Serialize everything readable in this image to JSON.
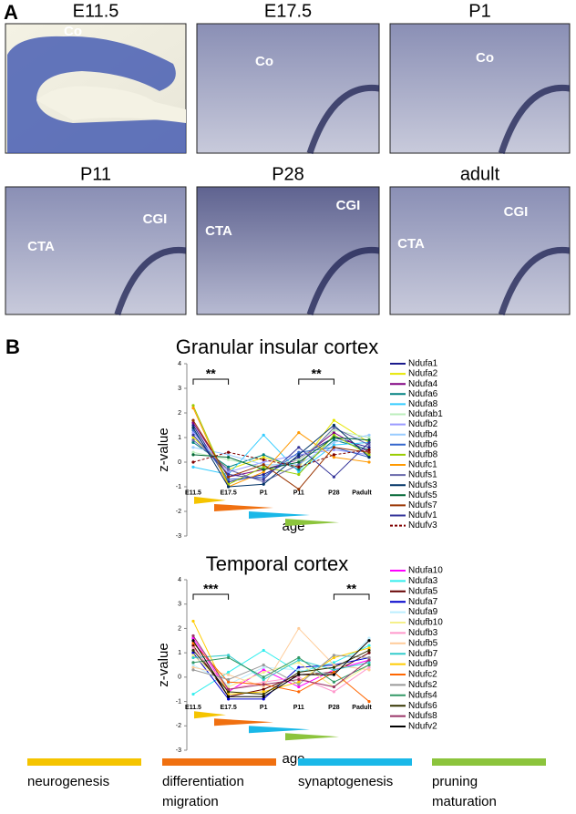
{
  "panel_a": {
    "label": "A",
    "images": [
      {
        "title": "E11.5",
        "labels": [
          "Co"
        ]
      },
      {
        "title": "E17.5",
        "labels": [
          "Co"
        ]
      },
      {
        "title": "P1",
        "labels": [
          "Co"
        ]
      },
      {
        "title": "P11",
        "labels": [
          "CGI",
          "CTA"
        ]
      },
      {
        "title": "P28",
        "labels": [
          "CGI",
          "CTA"
        ]
      },
      {
        "title": "adult",
        "labels": [
          "CGI",
          "CTA"
        ]
      }
    ]
  },
  "panel_b_label": "B",
  "chart_data": [
    {
      "type": "line",
      "title": "Granular insular cortex",
      "y_label": "z-value",
      "x_label": "age",
      "categories": [
        "E11.5",
        "E17.5",
        "P1",
        "P11",
        "P28",
        "Padult"
      ],
      "ylim": [
        -3,
        4
      ],
      "yticks": [
        -3,
        -2,
        -1,
        0,
        1,
        2,
        3,
        4
      ],
      "annotations": [
        {
          "text": "**"
        },
        {
          "text": "**"
        }
      ],
      "series": [
        {
          "name": "Ndufa1",
          "color": "#1a1a8c",
          "values": [
            1.5,
            -0.8,
            -0.5,
            0.2,
            1.0,
            0.6
          ]
        },
        {
          "name": "Ndufa2",
          "color": "#e6e600",
          "values": [
            1.0,
            -0.3,
            0.2,
            -0.2,
            1.7,
            0.8
          ]
        },
        {
          "name": "Ndufa4",
          "color": "#800080",
          "values": [
            1.6,
            -0.6,
            -0.3,
            0.1,
            1.2,
            0.4
          ]
        },
        {
          "name": "Ndufa6",
          "color": "#008080",
          "values": [
            0.8,
            -0.2,
            0.3,
            -0.3,
            0.9,
            0.5
          ]
        },
        {
          "name": "Ndufa8",
          "color": "#33ccff",
          "values": [
            -0.2,
            -0.5,
            1.1,
            -0.4,
            0.7,
            0.8
          ]
        },
        {
          "name": "Ndufab1",
          "color": "#bbeebb",
          "values": [
            0.4,
            0.1,
            -0.2,
            0.1,
            1.3,
            1.0
          ]
        },
        {
          "name": "Ndufb2",
          "color": "#9999ff",
          "values": [
            1.2,
            -0.4,
            0.0,
            0.3,
            0.5,
            0.3
          ]
        },
        {
          "name": "Ndufb4",
          "color": "#99ccff",
          "values": [
            0.6,
            0.3,
            -0.1,
            -0.1,
            0.8,
            1.1
          ]
        },
        {
          "name": "Ndufb6",
          "color": "#3366cc",
          "values": [
            1.3,
            -0.7,
            -0.6,
            0.4,
            0.6,
            0.2
          ]
        },
        {
          "name": "Ndufb8",
          "color": "#99cc00",
          "values": [
            2.3,
            -0.9,
            -0.2,
            -0.5,
            1.1,
            0.3
          ]
        },
        {
          "name": "Ndufc1",
          "color": "#ff9900",
          "values": [
            2.2,
            -1.0,
            -0.4,
            1.2,
            0.2,
            0.0
          ]
        },
        {
          "name": "Ndufs1",
          "color": "#6666aa",
          "values": [
            0.9,
            -0.3,
            -0.8,
            -0.1,
            1.4,
            0.7
          ]
        },
        {
          "name": "Ndufs3",
          "color": "#003366",
          "values": [
            1.4,
            -1.0,
            -0.9,
            0.3,
            1.5,
            0.2
          ]
        },
        {
          "name": "Ndufs5",
          "color": "#006633",
          "values": [
            0.3,
            0.2,
            -0.3,
            0.0,
            1.0,
            0.9
          ]
        },
        {
          "name": "Ndufs7",
          "color": "#993300",
          "values": [
            1.7,
            -0.6,
            -0.1,
            -1.1,
            0.6,
            0.4
          ]
        },
        {
          "name": "Ndufv1",
          "color": "#333399",
          "values": [
            1.1,
            -0.5,
            -0.7,
            0.6,
            -0.6,
            0.8
          ]
        },
        {
          "name": "Ndufv3",
          "color": "#800000",
          "dashed": true,
          "values": [
            0.0,
            0.4,
            0.1,
            -0.2,
            0.3,
            0.5
          ]
        }
      ]
    },
    {
      "type": "line",
      "title": "Temporal cortex",
      "y_label": "z-value",
      "x_label": "age",
      "categories": [
        "E11.5",
        "E17.5",
        "P1",
        "P11",
        "P28",
        "Padult"
      ],
      "ylim": [
        -3,
        4
      ],
      "yticks": [
        -3,
        -2,
        -1,
        0,
        1,
        2,
        3,
        4
      ],
      "annotations": [
        {
          "text": "***"
        },
        {
          "text": "**"
        }
      ],
      "series": [
        {
          "name": "Ndufa10",
          "color": "#ff00ff",
          "values": [
            1.6,
            -0.6,
            0.3,
            -0.4,
            0.3,
            0.7
          ]
        },
        {
          "name": "Ndufa3",
          "color": "#33eeee",
          "values": [
            -0.7,
            0.2,
            1.1,
            0.2,
            0.6,
            1.3
          ]
        },
        {
          "name": "Ndufa5",
          "color": "#660000",
          "values": [
            1.3,
            -0.8,
            -0.5,
            0.1,
            0.2,
            1.0
          ]
        },
        {
          "name": "Ndufa7",
          "color": "#0000cc",
          "values": [
            1.0,
            -0.9,
            -0.9,
            0.4,
            0.5,
            0.8
          ]
        },
        {
          "name": "Ndufa9",
          "color": "#bbeeff",
          "values": [
            0.5,
            -0.3,
            0.4,
            0.3,
            0.1,
            1.6
          ]
        },
        {
          "name": "Ndufb10",
          "color": "#f5f08a",
          "values": [
            0.9,
            -0.4,
            0.2,
            0.6,
            -0.4,
            0.5
          ]
        },
        {
          "name": "Ndufb3",
          "color": "#ff99cc",
          "values": [
            1.2,
            -0.5,
            -0.2,
            0.0,
            -0.6,
            0.4
          ]
        },
        {
          "name": "Ndufb5",
          "color": "#ffcc99",
          "values": [
            0.4,
            0.1,
            -0.4,
            2.0,
            0.5,
            0.3
          ]
        },
        {
          "name": "Ndufb7",
          "color": "#33cccc",
          "values": [
            0.8,
            0.9,
            -0.1,
            0.7,
            0.3,
            0.6
          ]
        },
        {
          "name": "Ndufb9",
          "color": "#ffcc00",
          "values": [
            2.3,
            -0.7,
            -0.6,
            -0.2,
            0.8,
            1.2
          ]
        },
        {
          "name": "Ndufc2",
          "color": "#ff6600",
          "values": [
            1.4,
            -0.2,
            -0.3,
            -0.6,
            0.2,
            -1.0
          ]
        },
        {
          "name": "Ndufs2",
          "color": "#999999",
          "values": [
            0.3,
            -0.1,
            0.5,
            -0.3,
            0.9,
            0.8
          ]
        },
        {
          "name": "Ndufs4",
          "color": "#339966",
          "values": [
            0.6,
            0.8,
            0.0,
            0.8,
            -0.2,
            0.5
          ]
        },
        {
          "name": "Ndufs6",
          "color": "#333300",
          "values": [
            1.1,
            -0.6,
            -0.7,
            0.2,
            0.4,
            1.1
          ]
        },
        {
          "name": "Ndufs8",
          "color": "#993366",
          "values": [
            1.7,
            -0.5,
            -0.3,
            -0.1,
            -0.4,
            0.7
          ]
        },
        {
          "name": "Ndufv2",
          "color": "#000000",
          "values": [
            1.5,
            -0.8,
            -0.8,
            0.1,
            0.1,
            1.5
          ]
        }
      ]
    }
  ],
  "phase_legend": [
    {
      "lines": [
        "neurogenesis"
      ],
      "color": "#f5c400"
    },
    {
      "lines": [
        "differentiation",
        "migration"
      ],
      "color": "#f07010"
    },
    {
      "lines": [
        "synaptogenesis"
      ],
      "color": "#1ab8e8"
    },
    {
      "lines": [
        "pruning",
        "maturation"
      ],
      "color": "#8cc43c"
    }
  ]
}
